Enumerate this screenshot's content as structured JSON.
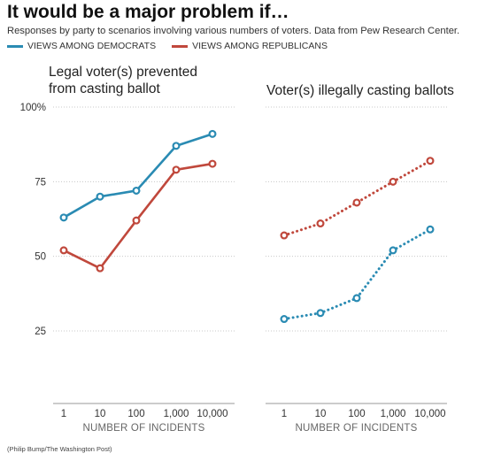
{
  "title": "It would be a major problem if…",
  "subtitle": "Responses by party to scenarios involving various numbers of voters. Data from Pew Research Center.",
  "credit": "(Philip Bump/The Washington Post)",
  "colors": {
    "democrats": "#2a8bb3",
    "republicans": "#c0483c",
    "grid": "#c8c8c8",
    "axis": "#999999"
  },
  "legend": [
    {
      "label": "VIEWS AMONG DEMOCRATS",
      "color": "#2a8bb3"
    },
    {
      "label": "VIEWS AMONG REPUBLICANS",
      "color": "#c0483c"
    }
  ],
  "chart_data": [
    {
      "type": "line",
      "title": "Legal voter(s) prevented from casting ballot",
      "xlabel": "NUMBER OF INCIDENTS",
      "ylabel": "",
      "x": [
        "1",
        "10",
        "100",
        "1,000",
        "10,000"
      ],
      "y_ticks": [
        "100%",
        "75",
        "50",
        "25"
      ],
      "ylim": [
        0,
        100
      ],
      "line_style": "solid",
      "grid": true,
      "series": [
        {
          "name": "VIEWS AMONG DEMOCRATS",
          "key": "democrats",
          "values": [
            63,
            70,
            72,
            87,
            91
          ]
        },
        {
          "name": "VIEWS AMONG REPUBLICANS",
          "key": "republicans",
          "values": [
            52,
            46,
            62,
            79,
            81
          ]
        }
      ]
    },
    {
      "type": "line",
      "title": "Voter(s) illegally casting ballots",
      "xlabel": "NUMBER OF INCIDENTS",
      "ylabel": "",
      "x": [
        "1",
        "10",
        "100",
        "1,000",
        "10,000"
      ],
      "y_ticks": [
        "100%",
        "75",
        "50",
        "25"
      ],
      "ylim": [
        0,
        100
      ],
      "line_style": "dotted",
      "grid": true,
      "series": [
        {
          "name": "VIEWS AMONG DEMOCRATS",
          "key": "democrats",
          "values": [
            29,
            31,
            36,
            52,
            59
          ]
        },
        {
          "name": "VIEWS AMONG REPUBLICANS",
          "key": "republicans",
          "values": [
            57,
            61,
            68,
            75,
            82
          ]
        }
      ]
    }
  ]
}
